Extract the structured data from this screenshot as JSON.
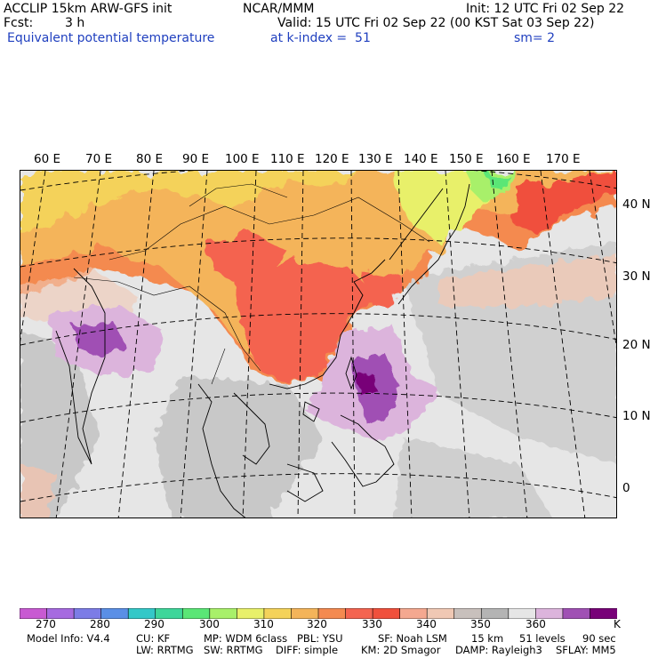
{
  "header": {
    "model": "ACCLIP 15km ARW-GFS init",
    "org": "NCAR/MMM",
    "init": "Init: 12 UTC Fri 02 Sep 22",
    "fcst_label": "Fcst:",
    "fcst_value": "3 h",
    "valid": "Valid: 15 UTC Fri 02 Sep 22 (00 KST Sat 03 Sep 22)",
    "field": "Equivalent potential temperature",
    "level": "at k-index =  51",
    "smooth": "sm= 2"
  },
  "map": {
    "longitude_labels": [
      "60 E",
      "70 E",
      "80 E",
      "90 E",
      "100 E",
      "110 E",
      "120 E",
      "130 E",
      "140 E",
      "150 E",
      "160 E",
      "170 E"
    ],
    "latitude_labels": [
      "40 N",
      "30 N",
      "20 N",
      "10 N",
      "0"
    ],
    "features": [
      "typhoon-core"
    ]
  },
  "colorbar": {
    "colors": [
      "#c85ad2",
      "#a66ae0",
      "#7c7ce6",
      "#5a8fe6",
      "#34c8c8",
      "#3ed69a",
      "#5ae676",
      "#a8f06a",
      "#e8f06a",
      "#f4d25a",
      "#f4b45a",
      "#f48a50",
      "#f46450",
      "#f0503c",
      "#f4a890",
      "#f0c8b4",
      "#c8c0bc",
      "#b4b4b4",
      "#e6e6e6",
      "#dcb4dc",
      "#a050b4",
      "#780078"
    ],
    "labels": [
      "270",
      "280",
      "290",
      "300",
      "310",
      "320",
      "330",
      "340",
      "350",
      "360"
    ],
    "unit": "K"
  },
  "model_info": {
    "line1": [
      "Model Info: V4.4",
      "CU: KF",
      "MP: WDM 6class",
      "PBL: YSU",
      "SF: Noah LSM",
      "15 km",
      "51 levels",
      "90 sec"
    ],
    "line2": [
      "LW: RRTMG",
      "SW: RRTMG",
      "DIFF: simple",
      "KM: 2D Smagor",
      "DAMP: Rayleigh3",
      "SFLAY: MM5"
    ]
  }
}
